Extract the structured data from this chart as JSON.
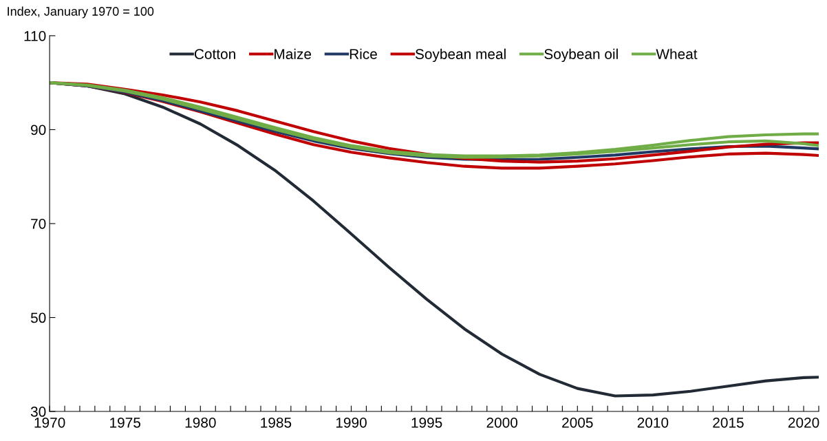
{
  "chart_data": {
    "type": "line",
    "ylabel": "Index, January 1970 = 100",
    "x": [
      1970,
      1972.5,
      1975,
      1977.5,
      1980,
      1982.5,
      1985,
      1987.5,
      1990,
      1992.5,
      1995,
      1997.5,
      2000,
      2002.5,
      2005,
      2007.5,
      2010,
      2012.5,
      2015,
      2017.5,
      2020,
      2021
    ],
    "series": [
      {
        "name": "Cotton",
        "color": "#222a35",
        "values": [
          100,
          99.3,
          97.6,
          94.8,
          91.2,
          86.6,
          81.2,
          74.8,
          67.8,
          60.7,
          53.9,
          47.6,
          42.2,
          37.9,
          34.9,
          33.3,
          33.5,
          34.3,
          35.4,
          36.5,
          37.2,
          37.3
        ]
      },
      {
        "name": "Maize",
        "color": "#c00000",
        "values": [
          100,
          99.3,
          97.9,
          96.0,
          93.8,
          91.4,
          89.0,
          86.8,
          85.2,
          84.0,
          83.0,
          82.2,
          81.8,
          81.8,
          82.2,
          82.7,
          83.4,
          84.2,
          84.8,
          85.0,
          84.7,
          84.5
        ]
      },
      {
        "name": "Rice",
        "color": "#203864",
        "values": [
          100,
          99.3,
          98.0,
          96.2,
          94.0,
          91.8,
          89.6,
          87.6,
          86.0,
          84.9,
          84.1,
          83.7,
          83.6,
          83.7,
          84.1,
          84.6,
          85.3,
          85.9,
          86.4,
          86.5,
          86.1,
          85.9
        ]
      },
      {
        "name": "Soybean meal",
        "color": "#c00000",
        "values": [
          100,
          99.7,
          98.6,
          97.4,
          95.9,
          94.0,
          91.8,
          89.6,
          87.6,
          86.0,
          84.8,
          83.9,
          83.3,
          83.1,
          83.3,
          83.8,
          84.6,
          85.4,
          86.3,
          86.9,
          87.2,
          87.2
        ]
      },
      {
        "name": "Soybean oil",
        "color": "#70ad47",
        "values": [
          100,
          99.5,
          98.4,
          96.8,
          94.8,
          92.6,
          90.4,
          88.3,
          86.6,
          85.4,
          84.7,
          84.4,
          84.4,
          84.6,
          85.1,
          85.8,
          86.7,
          87.7,
          88.5,
          88.9,
          89.1,
          89.1
        ]
      },
      {
        "name": "Wheat",
        "color": "#70ad47",
        "values": [
          100,
          99.4,
          98.2,
          96.5,
          94.4,
          92.2,
          90.0,
          88.0,
          86.3,
          85.1,
          84.4,
          84.1,
          84.2,
          84.4,
          84.8,
          85.4,
          86.1,
          86.8,
          87.4,
          87.6,
          87.0,
          86.6
        ]
      }
    ],
    "xlim": [
      1970,
      2021
    ],
    "xticks": [
      1970,
      {
        "value": 1971,
        "label": null
      },
      {
        "value": 1972,
        "label": null
      },
      {
        "value": 1973,
        "label": null
      },
      {
        "value": 1974,
        "label": null
      },
      1975,
      {
        "value": 1976,
        "label": null
      },
      {
        "value": 1977,
        "label": null
      },
      {
        "value": 1978,
        "label": null
      },
      {
        "value": 1979,
        "label": null
      },
      1980,
      {
        "value": 1981,
        "label": null
      },
      {
        "value": 1982,
        "label": null
      },
      {
        "value": 1983,
        "label": null
      },
      {
        "value": 1984,
        "label": null
      },
      1985,
      {
        "value": 1986,
        "label": null
      },
      {
        "value": 1987,
        "label": null
      },
      {
        "value": 1988,
        "label": null
      },
      {
        "value": 1989,
        "label": null
      },
      1990,
      {
        "value": 1991,
        "label": null
      },
      {
        "value": 1992,
        "label": null
      },
      {
        "value": 1993,
        "label": null
      },
      {
        "value": 1994,
        "label": null
      },
      1995,
      {
        "value": 1996,
        "label": null
      },
      {
        "value": 1997,
        "label": null
      },
      {
        "value": 1998,
        "label": null
      },
      {
        "value": 1999,
        "label": null
      },
      2000,
      {
        "value": 2001,
        "label": null
      },
      {
        "value": 2002,
        "label": null
      },
      {
        "value": 2003,
        "label": null
      },
      {
        "value": 2004,
        "label": null
      },
      2005,
      {
        "value": 2006,
        "label": null
      },
      {
        "value": 2007,
        "label": null
      },
      {
        "value": 2008,
        "label": null
      },
      {
        "value": 2009,
        "label": null
      },
      2010,
      {
        "value": 2011,
        "label": null
      },
      {
        "value": 2012,
        "label": null
      },
      {
        "value": 2013,
        "label": null
      },
      {
        "value": 2014,
        "label": null
      },
      2015,
      {
        "value": 2016,
        "label": null
      },
      {
        "value": 2017,
        "label": null
      },
      {
        "value": 2018,
        "label": null
      },
      {
        "value": 2019,
        "label": null
      },
      2020,
      {
        "value": 2021,
        "label": null
      }
    ],
    "ylim": [
      30,
      110
    ],
    "yticks": [
      30,
      50,
      70,
      90,
      110
    ],
    "grid": false,
    "legend": "top",
    "marker": "none",
    "line_style": "solid"
  }
}
